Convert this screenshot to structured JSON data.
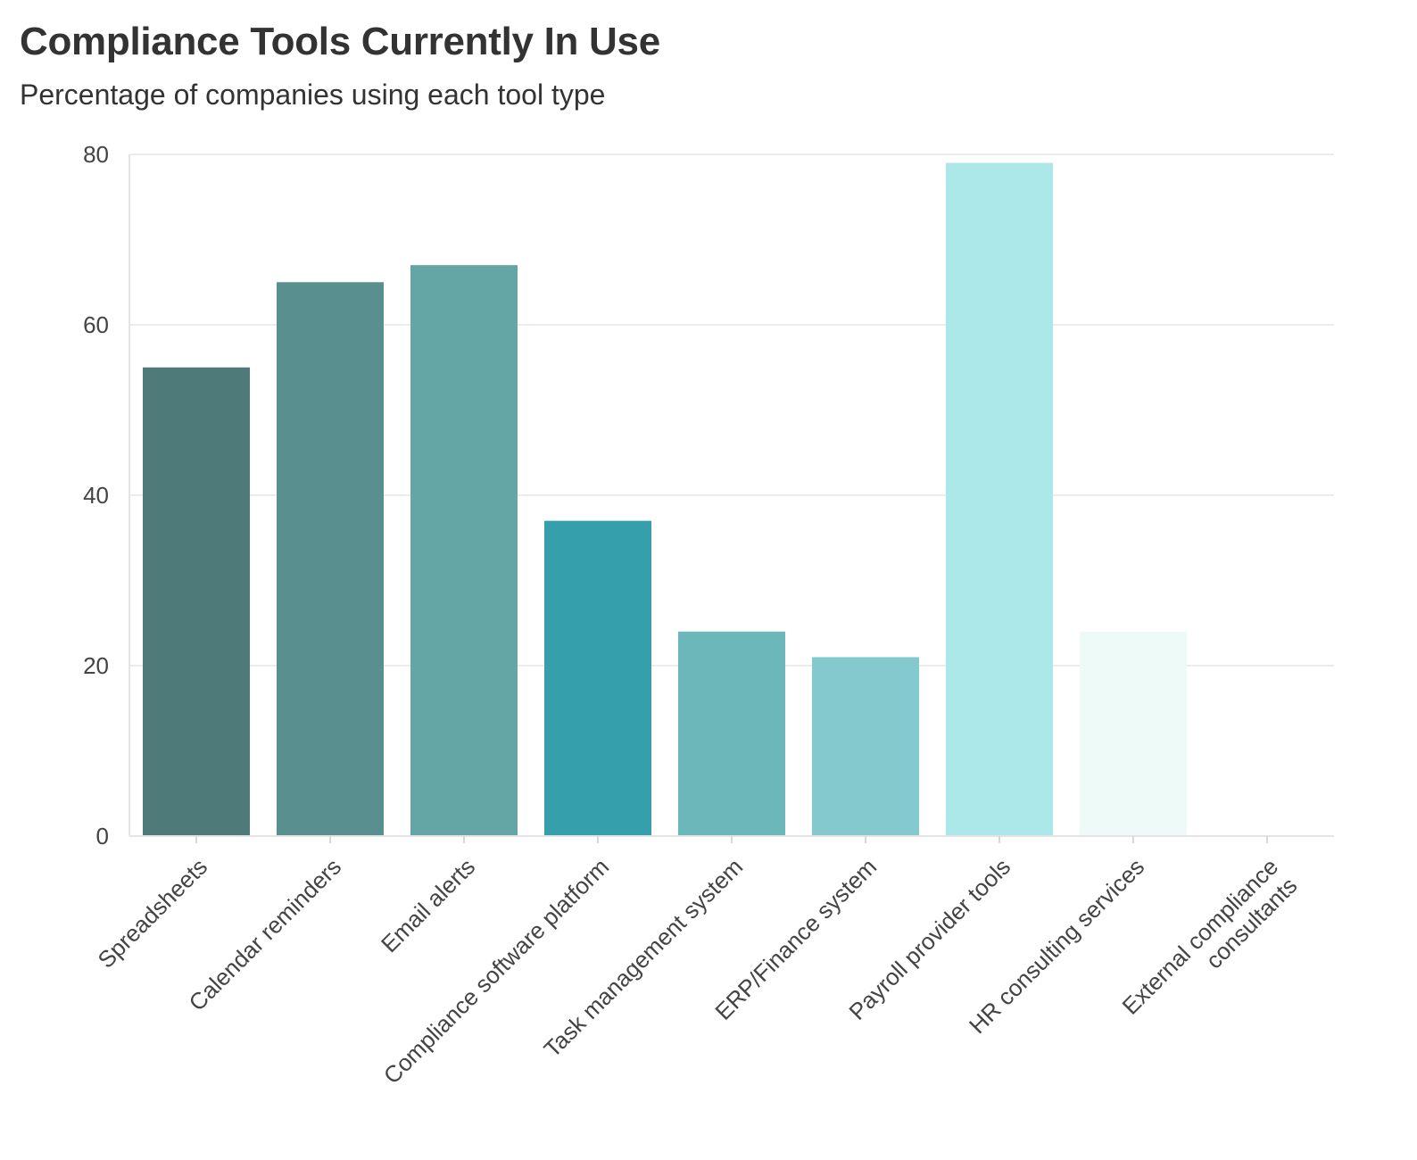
{
  "header": {
    "title": "Compliance Tools Currently In Use",
    "subtitle": "Percentage of companies using each tool type"
  },
  "chart_data": {
    "type": "bar",
    "title": "Compliance Tools Currently In Use",
    "subtitle": "Percentage of companies using each tool type",
    "xlabel": "",
    "ylabel": "",
    "ylim": [
      0,
      80
    ],
    "yticks": [
      0,
      20,
      40,
      60,
      80
    ],
    "grid": true,
    "legend": "none",
    "categories": [
      "Spreadsheets",
      "Calendar reminders",
      "Email alerts",
      "Compliance software platform",
      "Task management system",
      "ERP/Finance system",
      "Payroll provider tools",
      "HR consulting services",
      "External compliance consultants"
    ],
    "category_lines": [
      [
        "Spreadsheets"
      ],
      [
        "Calendar reminders"
      ],
      [
        "Email alerts"
      ],
      [
        "Compliance software platform"
      ],
      [
        "Task management system"
      ],
      [
        "ERP/Finance system"
      ],
      [
        "Payroll provider tools"
      ],
      [
        "HR consulting services"
      ],
      [
        "External compliance",
        "consultants"
      ]
    ],
    "values": [
      55,
      65,
      67,
      37,
      24,
      21,
      79,
      24,
      0
    ],
    "colors": [
      "#4f7a7a",
      "#5a8f8f",
      "#64a5a6",
      "#359fab",
      "#6cb7ba",
      "#84c9cd",
      "#ace7e9",
      "#eefaf7",
      "#f8fdfc"
    ]
  }
}
